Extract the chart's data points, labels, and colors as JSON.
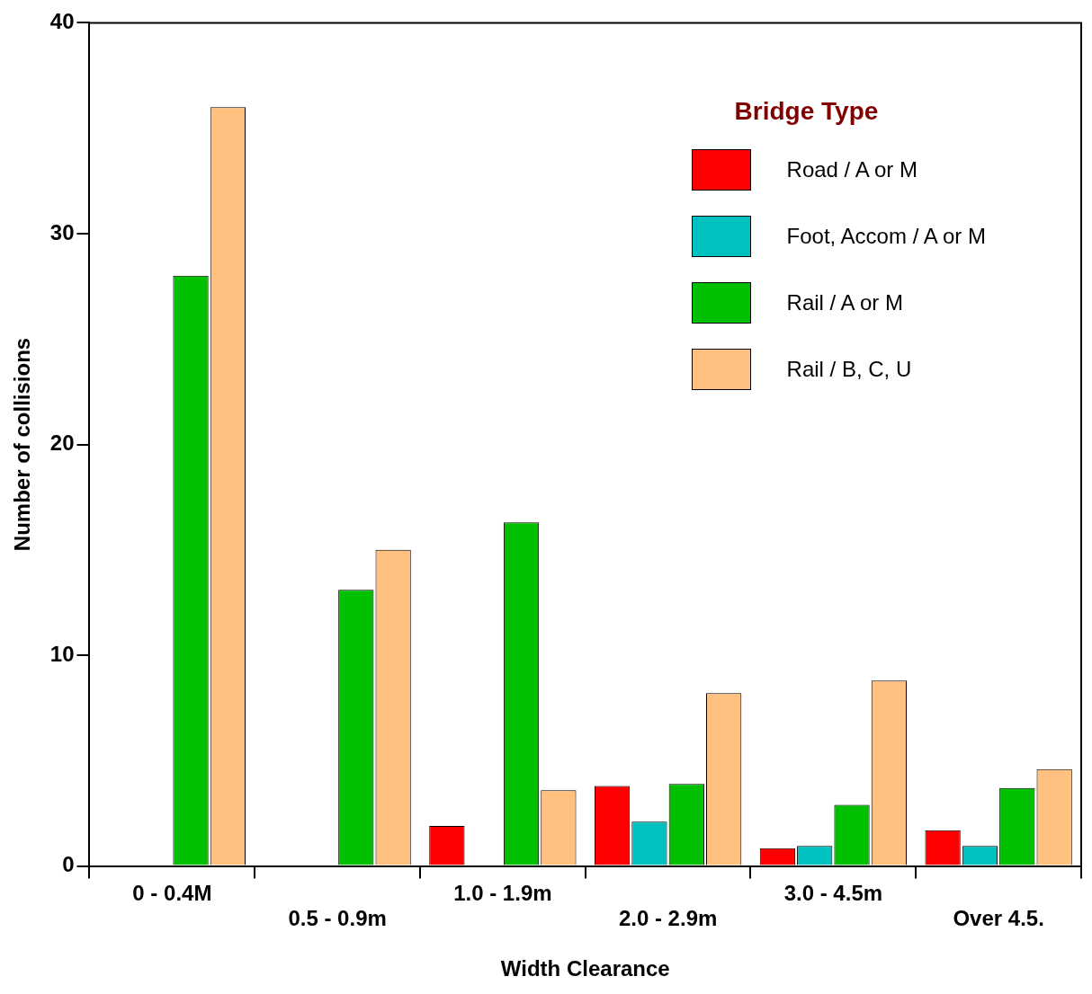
{
  "chart_data": {
    "type": "bar",
    "xlabel": "Width Clearance",
    "ylabel": "Number of collisions",
    "legend_title": "Bridge Type",
    "categories": [
      "0 - 0.4M",
      "0.5 - 0.9m",
      "1.0 - 1.9m",
      "2.0 - 2.9m",
      "3.0 - 4.5m",
      "Over 4.5."
    ],
    "series": [
      {
        "name": "Road / A or M",
        "color": "#ff0000",
        "values": [
          null,
          null,
          1.9,
          3.8,
          0.85,
          1.7
        ]
      },
      {
        "name": "Foot, Accom / A or M",
        "color": "#00c0c0",
        "values": [
          null,
          null,
          null,
          2.1,
          0.95,
          0.95
        ]
      },
      {
        "name": "Rail / A or M",
        "color": "#00c000",
        "values": [
          28,
          13.1,
          16.3,
          3.9,
          2.9,
          3.7
        ]
      },
      {
        "name": "Rail / B, C, U",
        "color": "#ffc080",
        "values": [
          36,
          15,
          3.6,
          8.2,
          8.8,
          4.6
        ]
      }
    ],
    "ylim": [
      0,
      40
    ],
    "yticks": [
      0,
      10,
      20,
      30,
      40
    ],
    "grid": false,
    "legend": "top right"
  }
}
